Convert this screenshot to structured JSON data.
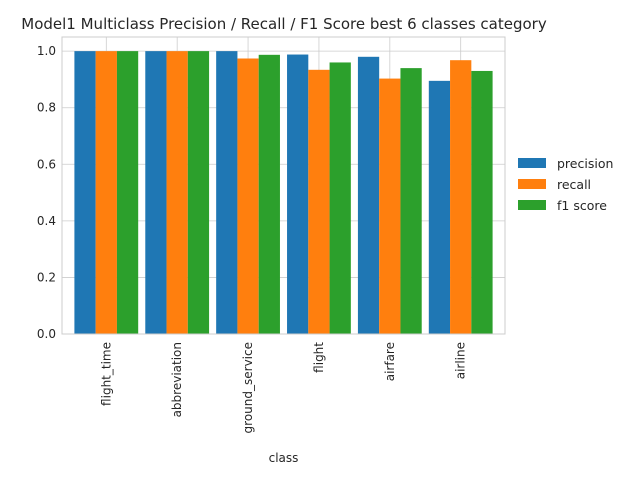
{
  "chart_data": {
    "type": "bar",
    "title": "Model1 Multiclass Precision / Recall / F1 Score best 6 classes category",
    "xlabel": "class",
    "ylabel": "",
    "ylim": [
      0,
      1.05
    ],
    "yticks": [
      0.0,
      0.2,
      0.4,
      0.6,
      0.8,
      1.0
    ],
    "ytick_labels": [
      "0.0",
      "0.2",
      "0.4",
      "0.6",
      "0.8",
      "1.0"
    ],
    "grid": true,
    "legend_position": "right",
    "categories": [
      "flight_time",
      "abbreviation",
      "ground_service",
      "flight",
      "airfare",
      "airline"
    ],
    "series": [
      {
        "name": "precision",
        "color": "#1f77b4",
        "values": [
          1.0,
          1.0,
          1.0,
          0.988,
          0.98,
          0.895
        ]
      },
      {
        "name": "recall",
        "color": "#ff7f0e",
        "values": [
          1.0,
          1.0,
          0.974,
          0.934,
          0.903,
          0.968
        ]
      },
      {
        "name": "f1 score",
        "color": "#2ca02c",
        "values": [
          1.0,
          1.0,
          0.987,
          0.96,
          0.94,
          0.93
        ]
      }
    ]
  }
}
